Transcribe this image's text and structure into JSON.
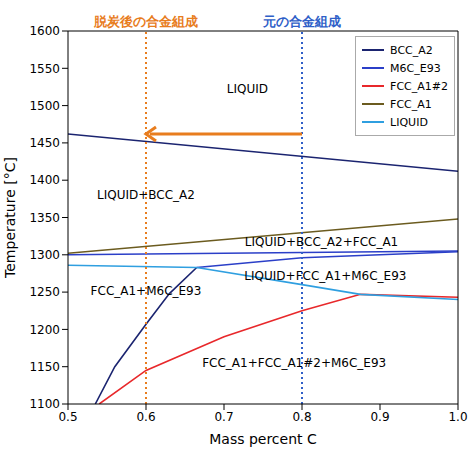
{
  "chart_data": {
    "type": "line",
    "x_label": "Mass percent C",
    "y_label": "Temperature [°C]",
    "xlim": [
      0.5,
      1
    ],
    "ylim": [
      1100,
      1600
    ],
    "xticks": [
      0.5,
      0.6,
      0.7,
      0.8,
      0.9,
      {
        "value": 1,
        "label": "1.0"
      }
    ],
    "yticks": [
      1100,
      1150,
      1200,
      1250,
      1300,
      1350,
      1400,
      1450,
      1500,
      1550,
      1600
    ],
    "legend": "top-right",
    "series": [
      {
        "name": "BCC_A2",
        "color": "#1b2470",
        "x": [
          0.5,
          1,
          null,
          0.535,
          0.56,
          0.6,
          0.63,
          0.665
        ],
        "values": [
          1462,
          1412,
          null,
          1100,
          1150,
          1207,
          1248,
          1283
        ]
      },
      {
        "name": "M6C_E93",
        "color": "#2b3fc8",
        "x": [
          0.5,
          1,
          null,
          0.665,
          0.8,
          1
        ],
        "values": [
          1300,
          1305,
          null,
          1283,
          1296,
          1304
        ]
      },
      {
        "name": "FCC_A1#2",
        "color": "#e8282b",
        "x": [
          0.54,
          0.6,
          0.7,
          0.8,
          0.875,
          1
        ],
        "values": [
          1100,
          1145,
          1190,
          1225,
          1247,
          1243
        ]
      },
      {
        "name": "FCC_A1",
        "color": "#6b5b1f",
        "x": [
          0.5,
          1
        ],
        "values": [
          1302,
          1348
        ]
      },
      {
        "name": "LIQUID",
        "color": "#2f9fe0",
        "x": [
          0.5,
          0.665,
          0.8,
          0.875,
          1
        ],
        "values": [
          1286,
          1283,
          1260,
          1247,
          1240
        ]
      }
    ],
    "reference_lines": [
      {
        "x": 0.6,
        "label": "脱炭後の合金組成",
        "color": "#e87d1e"
      },
      {
        "x": 0.8,
        "label": "元の合金組成",
        "color": "#2f5fc8"
      }
    ],
    "arrow": {
      "from": 0.8,
      "to": 0.6,
      "y": 1462,
      "color": "#e87d1e"
    },
    "region_labels": [
      "LIQUID",
      "LIQUID+BCC_A2",
      "LIQUID+BCC_A2+FCC_A1",
      "LIQUID+FCC_A1+M6C_E93",
      "FCC_A1+M6C_E93",
      "FCC_A1+FCC_A1#2+M6C_E93"
    ]
  }
}
